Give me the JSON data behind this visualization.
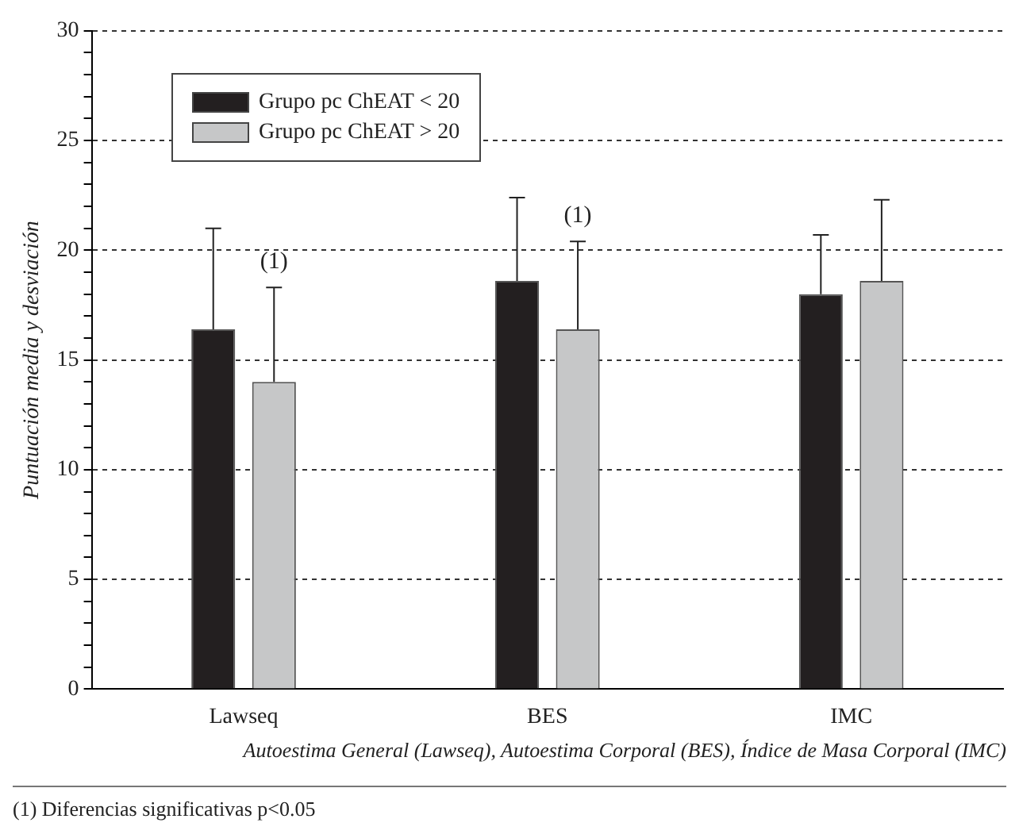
{
  "chart_data": {
    "type": "bar",
    "ylabel": "Puntuación media y desviación",
    "xlabel": "Autoestima General (Lawseq), Autoestima Corporal (BES), Índice de Masa Corporal (IMC)",
    "categories": [
      "Lawseq",
      "BES",
      "IMC"
    ],
    "series": [
      {
        "name": "Grupo pc ChEAT < 20",
        "color": "#231f20",
        "values": [
          16.4,
          18.6,
          18.0
        ],
        "errors": [
          [
            16.4,
            21.0
          ],
          [
            18.6,
            22.4
          ],
          [
            18.0,
            20.7
          ]
        ]
      },
      {
        "name": "Grupo pc ChEAT > 20",
        "color": "#c6c7c8",
        "values": [
          14.0,
          16.4,
          18.6
        ],
        "errors": [
          [
            14.0,
            18.3
          ],
          [
            16.4,
            20.4
          ],
          [
            18.6,
            22.3
          ]
        ]
      }
    ],
    "ylim": [
      0,
      30
    ],
    "yticks": [
      0,
      {
        "value": 1,
        "label": null
      },
      {
        "value": 2,
        "label": null
      },
      {
        "value": 3,
        "label": null
      },
      {
        "value": 4,
        "label": null
      },
      5,
      {
        "value": 6,
        "label": null
      },
      {
        "value": 7,
        "label": null
      },
      {
        "value": 8,
        "label": null
      },
      {
        "value": 9,
        "label": null
      },
      10,
      {
        "value": 11,
        "label": null
      },
      {
        "value": 12,
        "label": null
      },
      {
        "value": 13,
        "label": null
      },
      {
        "value": 14,
        "label": null
      },
      15,
      {
        "value": 16,
        "label": null
      },
      {
        "value": 17,
        "label": null
      },
      {
        "value": 18,
        "label": null
      },
      {
        "value": 19,
        "label": null
      },
      20,
      {
        "value": 21,
        "label": null
      },
      {
        "value": 22,
        "label": null
      },
      {
        "value": 23,
        "label": null
      },
      {
        "value": 24,
        "label": null
      },
      25,
      {
        "value": 26,
        "label": null
      },
      {
        "value": 27,
        "label": null
      },
      {
        "value": 28,
        "label": null
      },
      {
        "value": 29,
        "label": null
      },
      30
    ],
    "grid": "y",
    "legend": "top left",
    "annotations": [
      "(1)",
      "(1)",
      "(1) Diferencias significativas p<0.05"
    ]
  }
}
